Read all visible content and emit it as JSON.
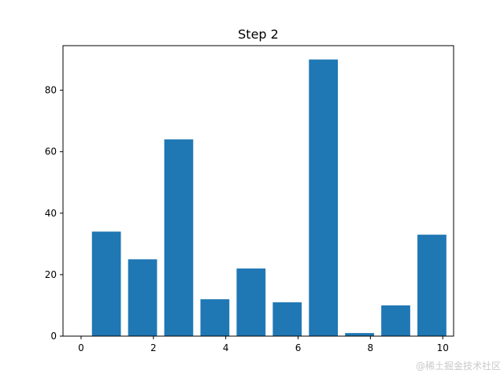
{
  "chart_data": {
    "type": "bar",
    "title": "Step 2",
    "xlabel": "",
    "ylabel": "",
    "x": [
      0.7,
      1.7,
      2.7,
      3.7,
      4.7,
      5.7,
      6.7,
      7.7,
      8.7,
      9.7
    ],
    "values": [
      34,
      25,
      64,
      12,
      22,
      11,
      90,
      1,
      10,
      33
    ],
    "bar_width": 0.8,
    "xlim": [
      -0.5,
      10.3
    ],
    "ylim": [
      0,
      94.5
    ],
    "xticks": [
      0,
      2,
      4,
      6,
      8,
      10
    ],
    "xtick_labels": [
      "0",
      "2",
      "4",
      "6",
      "8",
      "10"
    ],
    "yticks": [
      0,
      20,
      40,
      60,
      80
    ],
    "ytick_labels": [
      "0",
      "20",
      "40",
      "60",
      "80"
    ],
    "bar_color": "#1f77b4",
    "grid": false,
    "legend": null
  },
  "watermark": "@稀土掘金技术社区"
}
